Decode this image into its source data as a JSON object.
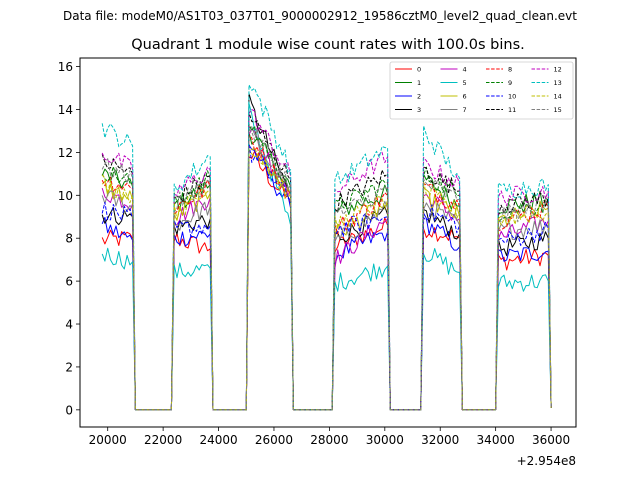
{
  "suptitle": "Data file: modeM0/AS1T03_037T01_9000002912_19586cztM0_level2_quad_clean.evt",
  "colors": {
    "s0": "#ff0000",
    "s1": "#008000",
    "s2": "#0000ff",
    "s3": "#000000",
    "s4": "#bf00bf",
    "s5": "#00bfbf",
    "s6": "#bfbf00",
    "s7": "#808080"
  },
  "chart_data": {
    "type": "line",
    "title": "Quadrant 1 module wise count rates with 100.0s bins.",
    "xlabel": "",
    "ylabel": "",
    "x_offset_label": "+2.954e8",
    "xlim": [
      19000,
      36900
    ],
    "ylim": [
      -0.8,
      16.4
    ],
    "xticks": [
      20000,
      22000,
      24000,
      26000,
      28000,
      30000,
      32000,
      34000,
      36000
    ],
    "xtick_labels": [
      "20000",
      "22000",
      "24000",
      "26000",
      "28000",
      "30000",
      "32000",
      "34000",
      "36000"
    ],
    "yticks": [
      0,
      2,
      4,
      6,
      8,
      10,
      12,
      14,
      16
    ],
    "ytick_labels": [
      "0",
      "2",
      "4",
      "6",
      "8",
      "10",
      "12",
      "14",
      "16"
    ],
    "legend_position": "top-right",
    "x_knots": [
      19800,
      20900,
      21000,
      22300,
      22400,
      23700,
      23800,
      25000,
      25100,
      26600,
      26700,
      28100,
      28200,
      30100,
      30200,
      31300,
      31400,
      32700,
      32800,
      34000,
      34100,
      35900,
      36000
    ],
    "series": [
      {
        "name": "0",
        "dashed": false,
        "values": [
          7.9,
          8.0,
          0.0,
          0.0,
          8.0,
          7.5,
          0.0,
          0.0,
          12.0,
          9.6,
          0.0,
          0.0,
          7.6,
          8.6,
          0.0,
          0.0,
          8.5,
          8.0,
          0.0,
          0.0,
          6.9,
          7.2,
          0.1
        ]
      },
      {
        "name": "1",
        "dashed": false,
        "values": [
          11.0,
          10.4,
          0.0,
          0.0,
          9.5,
          10.5,
          0.0,
          0.0,
          13.0,
          10.4,
          0.0,
          0.0,
          9.2,
          10.1,
          0.0,
          0.0,
          10.8,
          9.5,
          0.0,
          0.0,
          9.5,
          9.8,
          0.1
        ]
      },
      {
        "name": "2",
        "dashed": false,
        "values": [
          8.6,
          7.9,
          0.0,
          0.0,
          8.0,
          8.2,
          0.0,
          0.0,
          12.4,
          9.4,
          0.0,
          0.0,
          7.2,
          8.3,
          0.0,
          0.0,
          8.8,
          7.6,
          0.0,
          0.0,
          7.1,
          7.4,
          0.1
        ]
      },
      {
        "name": "3",
        "dashed": false,
        "values": [
          9.1,
          9.0,
          0.0,
          0.0,
          8.5,
          8.9,
          0.0,
          0.0,
          14.3,
          10.0,
          0.0,
          0.0,
          8.0,
          9.1,
          0.0,
          0.0,
          9.2,
          8.2,
          0.0,
          0.0,
          7.5,
          8.0,
          0.1
        ]
      },
      {
        "name": "4",
        "dashed": false,
        "values": [
          10.2,
          9.6,
          0.0,
          0.0,
          8.9,
          9.9,
          0.0,
          0.0,
          13.1,
          10.2,
          0.0,
          0.0,
          7.0,
          8.9,
          0.0,
          0.0,
          10.0,
          8.9,
          0.0,
          0.0,
          8.0,
          8.8,
          0.1
        ]
      },
      {
        "name": "5",
        "dashed": false,
        "values": [
          7.3,
          6.9,
          0.0,
          0.0,
          6.4,
          6.6,
          0.0,
          0.0,
          13.9,
          8.6,
          0.0,
          0.0,
          5.9,
          6.7,
          0.0,
          0.0,
          7.4,
          6.4,
          0.0,
          0.0,
          5.9,
          6.0,
          0.1
        ]
      },
      {
        "name": "6",
        "dashed": false,
        "values": [
          10.4,
          9.8,
          0.0,
          0.0,
          9.0,
          10.1,
          0.0,
          0.0,
          12.4,
          10.0,
          0.0,
          0.0,
          8.2,
          9.6,
          0.0,
          0.0,
          9.9,
          9.0,
          0.0,
          0.0,
          8.8,
          9.4,
          0.1
        ]
      },
      {
        "name": "7",
        "dashed": false,
        "values": [
          10.0,
          9.4,
          0.0,
          0.0,
          8.6,
          9.5,
          0.0,
          0.0,
          13.0,
          10.0,
          0.0,
          0.0,
          7.8,
          9.4,
          0.0,
          0.0,
          9.6,
          8.6,
          0.0,
          0.0,
          8.3,
          8.6,
          0.1
        ]
      },
      {
        "name": "8",
        "dashed": true,
        "values": [
          10.8,
          10.3,
          0.0,
          0.0,
          9.4,
          10.4,
          0.0,
          0.0,
          12.8,
          10.0,
          0.0,
          0.0,
          8.4,
          10.0,
          0.0,
          0.0,
          10.4,
          9.5,
          0.0,
          0.0,
          8.8,
          9.4,
          0.1
        ]
      },
      {
        "name": "9",
        "dashed": true,
        "values": [
          11.2,
          10.6,
          0.0,
          0.0,
          9.7,
          10.8,
          0.0,
          0.0,
          13.4,
          10.4,
          0.0,
          0.0,
          9.4,
          10.6,
          0.0,
          0.0,
          11.0,
          10.0,
          0.0,
          0.0,
          9.2,
          9.6,
          0.1
        ]
      },
      {
        "name": "10",
        "dashed": true,
        "values": [
          9.4,
          8.9,
          0.0,
          0.0,
          8.4,
          8.6,
          0.0,
          0.0,
          12.0,
          9.8,
          0.0,
          0.0,
          8.4,
          9.0,
          0.0,
          0.0,
          9.3,
          8.6,
          0.0,
          0.0,
          7.8,
          8.4,
          0.1
        ]
      },
      {
        "name": "11",
        "dashed": true,
        "values": [
          11.6,
          11.0,
          0.0,
          0.0,
          9.8,
          10.9,
          0.0,
          0.0,
          13.8,
          10.7,
          0.0,
          0.0,
          9.6,
          11.0,
          0.0,
          0.0,
          11.2,
          10.2,
          0.0,
          0.0,
          9.5,
          9.9,
          0.1
        ]
      },
      {
        "name": "12",
        "dashed": true,
        "values": [
          12.0,
          11.2,
          0.0,
          0.0,
          10.1,
          11.2,
          0.0,
          0.0,
          14.0,
          10.9,
          0.0,
          0.0,
          10.2,
          11.8,
          0.0,
          0.0,
          11.4,
          10.5,
          0.0,
          0.0,
          9.9,
          10.2,
          0.1
        ]
      },
      {
        "name": "13",
        "dashed": true,
        "values": [
          13.2,
          12.3,
          0.0,
          0.0,
          10.3,
          11.8,
          0.0,
          0.0,
          15.5,
          11.2,
          0.0,
          0.0,
          10.6,
          12.2,
          0.0,
          0.0,
          13.0,
          10.8,
          0.0,
          0.0,
          10.2,
          10.5,
          0.1
        ]
      },
      {
        "name": "14",
        "dashed": true,
        "values": [
          10.6,
          10.0,
          0.0,
          0.0,
          9.2,
          10.2,
          0.0,
          0.0,
          12.6,
          9.9,
          0.0,
          0.0,
          8.6,
          9.8,
          0.0,
          0.0,
          10.2,
          9.2,
          0.0,
          0.0,
          8.9,
          9.2,
          0.1
        ]
      },
      {
        "name": "15",
        "dashed": true,
        "values": [
          11.4,
          10.8,
          0.0,
          0.0,
          9.6,
          10.6,
          0.0,
          0.0,
          13.2,
          10.5,
          0.0,
          0.0,
          9.0,
          10.3,
          0.0,
          0.0,
          10.6,
          9.8,
          0.0,
          0.0,
          9.0,
          9.5,
          0.1
        ]
      }
    ]
  }
}
